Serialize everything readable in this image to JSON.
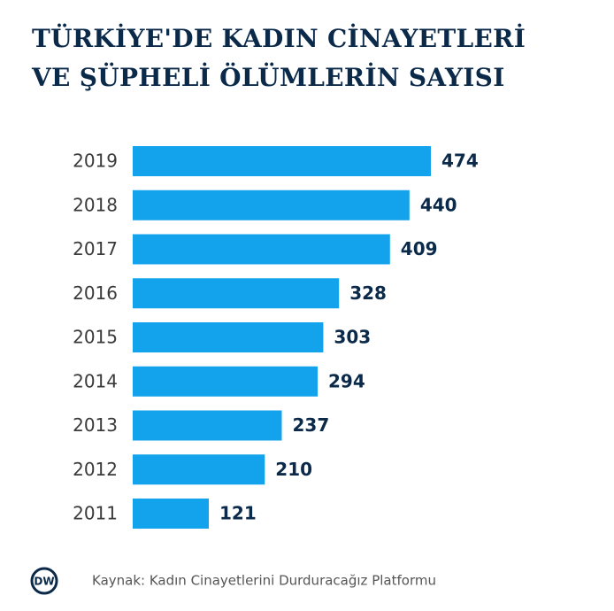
{
  "chart_data": {
    "type": "bar",
    "orientation": "horizontal",
    "title": "TÜRKİYE'DE KADIN CİNAYETLERİ VE ŞÜPHELİ ÖLÜMLERİN SAYISI",
    "categories": [
      "2019",
      "2018",
      "2017",
      "2016",
      "2015",
      "2014",
      "2013",
      "2012",
      "2011"
    ],
    "values": [
      474,
      440,
      409,
      328,
      303,
      294,
      237,
      210,
      121
    ],
    "color": "#13a3ec",
    "source": "Kaynak: Kadın Cinayetlerini Durduracağız Platformu",
    "logo": "DW"
  }
}
